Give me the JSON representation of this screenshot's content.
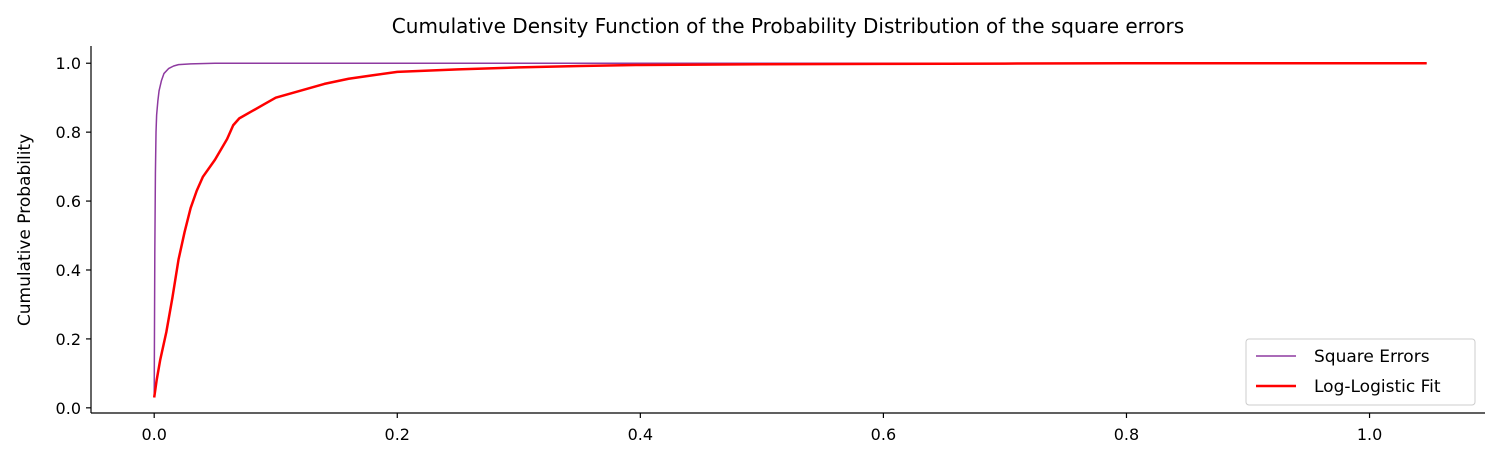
{
  "chart_data": {
    "type": "line",
    "title": "Cumulative Density Function of the Probability Distribution of the square errors",
    "xlabel": "",
    "ylabel": "Cumulative Probability",
    "xlim": [
      -0.052,
      1.095
    ],
    "ylim": [
      -0.015,
      1.05
    ],
    "xticks": [
      0.0,
      0.2,
      0.4,
      0.6,
      0.8,
      1.0
    ],
    "xtick_labels": [
      "0.0",
      "0.2",
      "0.4",
      "0.6",
      "0.8",
      "1.0"
    ],
    "yticks": [
      0.0,
      0.2,
      0.4,
      0.6,
      0.8,
      1.0
    ],
    "ytick_labels": [
      "0.0",
      "0.2",
      "0.4",
      "0.6",
      "0.8",
      "1.0"
    ],
    "grid": false,
    "legend_position": "lower-right",
    "series": [
      {
        "name": "Square Errors",
        "color": "#8e3aa0",
        "points": [
          [
            0.0,
            0.03
          ],
          [
            0.0005,
            0.45
          ],
          [
            0.001,
            0.68
          ],
          [
            0.0015,
            0.8
          ],
          [
            0.002,
            0.85
          ],
          [
            0.003,
            0.89
          ],
          [
            0.004,
            0.92
          ],
          [
            0.006,
            0.95
          ],
          [
            0.008,
            0.97
          ],
          [
            0.012,
            0.985
          ],
          [
            0.016,
            0.992
          ],
          [
            0.02,
            0.996
          ],
          [
            0.03,
            0.998
          ],
          [
            0.05,
            1.0
          ],
          [
            0.2,
            1.0
          ],
          [
            0.4,
            1.0
          ],
          [
            0.6,
            1.0
          ],
          [
            0.8,
            1.0
          ],
          [
            1.0,
            1.0
          ],
          [
            1.047,
            1.0
          ]
        ]
      },
      {
        "name": "Log-Logistic Fit",
        "color": "#ff0000",
        "points": [
          [
            0.0,
            0.03
          ],
          [
            0.002,
            0.08
          ],
          [
            0.005,
            0.14
          ],
          [
            0.01,
            0.22
          ],
          [
            0.015,
            0.32
          ],
          [
            0.02,
            0.43
          ],
          [
            0.025,
            0.51
          ],
          [
            0.03,
            0.58
          ],
          [
            0.035,
            0.63
          ],
          [
            0.04,
            0.67
          ],
          [
            0.05,
            0.72
          ],
          [
            0.06,
            0.78
          ],
          [
            0.065,
            0.82
          ],
          [
            0.07,
            0.84
          ],
          [
            0.08,
            0.86
          ],
          [
            0.09,
            0.88
          ],
          [
            0.1,
            0.9
          ],
          [
            0.12,
            0.92
          ],
          [
            0.14,
            0.94
          ],
          [
            0.16,
            0.955
          ],
          [
            0.18,
            0.965
          ],
          [
            0.2,
            0.975
          ],
          [
            0.25,
            0.982
          ],
          [
            0.3,
            0.988
          ],
          [
            0.35,
            0.992
          ],
          [
            0.4,
            0.995
          ],
          [
            0.5,
            0.997
          ],
          [
            0.6,
            0.998
          ],
          [
            0.7,
            0.999
          ],
          [
            0.8,
            1.0
          ],
          [
            0.9,
            1.0
          ],
          [
            1.0,
            1.0
          ],
          [
            1.047,
            1.0
          ]
        ]
      }
    ]
  }
}
